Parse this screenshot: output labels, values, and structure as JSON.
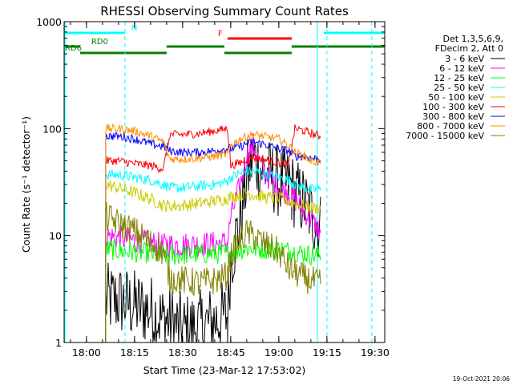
{
  "chart_data": {
    "type": "line",
    "title": "RHESSI Observing Summary Count Rates",
    "xlabel": "Start Time (23-Mar-12 17:53:02)",
    "ylabel": "Count Rate (s⁻¹ detector⁻¹)",
    "y_scale": "log",
    "ylim": [
      1,
      1000
    ],
    "xlim": [
      "17:53:02",
      "19:33:02"
    ],
    "x_ticks": [
      "18:00",
      "18:15",
      "18:30",
      "18:45",
      "19:00",
      "19:15",
      "19:30"
    ],
    "y_ticks": [
      "1",
      "10",
      "100",
      "1000"
    ],
    "legend": {
      "position": "right",
      "header": [
        "Det 1,3,5,6,9,",
        "FDecim 2, Att 0"
      ]
    },
    "timestamp": "19-Oct-2021 20:06",
    "flag_bars": [
      {
        "label": "N",
        "color": "#00ffff",
        "segments": [
          [
            "17:53:02",
            "18:12"
          ],
          [
            "19:14",
            "19:33"
          ]
        ]
      },
      {
        "label": "F",
        "color": "#ff0000",
        "segments": [
          [
            "18:44",
            "19:04"
          ]
        ]
      },
      {
        "label": "RD0",
        "color": "#008000",
        "segments": [
          [
            "17:53:02",
            "17:58"
          ],
          [
            "18:25",
            "18:43"
          ],
          [
            "19:04",
            "19:33"
          ]
        ]
      },
      {
        "label": "RD6",
        "color": "#008000",
        "segments": [
          [
            "17:58",
            "18:25"
          ],
          [
            "18:43",
            "19:04"
          ]
        ]
      }
    ],
    "vlines": [
      {
        "time": "17:53:02",
        "color": "#00ffff",
        "style": "solid"
      },
      {
        "time": "18:12",
        "color": "#00ffff",
        "style": "dashed"
      },
      {
        "time": "19:12",
        "color": "#00ffff",
        "style": "solid"
      },
      {
        "time": "19:15",
        "color": "#00ffff",
        "style": "dashed"
      },
      {
        "time": "19:29",
        "color": "#00ffff",
        "style": "dashed"
      }
    ],
    "data_segments": [
      [
        "18:06",
        "18:25"
      ],
      [
        "18:25",
        "18:44"
      ],
      [
        "18:44",
        "19:04"
      ],
      [
        "19:04",
        "19:13"
      ]
    ],
    "x": [
      "18:06",
      "18:10",
      "18:15",
      "18:20",
      "18:24",
      "18:26",
      "18:30",
      "18:35",
      "18:40",
      "18:44",
      "18:45",
      "18:48",
      "18:50",
      "18:52",
      "18:55",
      "19:00",
      "19:03",
      "19:05",
      "19:08",
      "19:10",
      "19:13"
    ],
    "series": [
      {
        "name": "3 - 6 keV",
        "color": "#000000",
        "values": [
          2.5,
          2.5,
          2.2,
          2.0,
          1.6,
          1.6,
          1.3,
          1.4,
          1.6,
          1.8,
          6,
          14,
          35,
          55,
          40,
          32,
          30,
          25,
          20,
          16,
          12
        ]
      },
      {
        "name": "6 - 12 keV",
        "color": "#ff00ff",
        "values": [
          10,
          9.5,
          9,
          8.6,
          8,
          8.2,
          8.2,
          8.3,
          8.4,
          8.6,
          15,
          30,
          55,
          70,
          40,
          28,
          25,
          22,
          17,
          14,
          11
        ]
      },
      {
        "name": "12 - 25 keV",
        "color": "#00ff00",
        "values": [
          7.5,
          7.2,
          7,
          6.8,
          6.5,
          6.5,
          6.6,
          6.7,
          6.8,
          6.8,
          7,
          7.4,
          7.6,
          7.6,
          7.5,
          7.4,
          7.2,
          7.0,
          6.8,
          6.6,
          6.5
        ]
      },
      {
        "name": "25 - 50 keV",
        "color": "#00ffff",
        "values": [
          37,
          37,
          35,
          33,
          30,
          28,
          28,
          29,
          30,
          32,
          35,
          38,
          40,
          40,
          38,
          35,
          33,
          30,
          28,
          27,
          27
        ]
      },
      {
        "name": "50 - 100 keV",
        "color": "#cccc00",
        "values": [
          30,
          28,
          25,
          22,
          19,
          19,
          19,
          20,
          21,
          22,
          23,
          24,
          25,
          24,
          23,
          22,
          21,
          20,
          19,
          18,
          18
        ]
      },
      {
        "name": "100 - 300 keV",
        "color": "#ff0000",
        "values": [
          50,
          50,
          47,
          45,
          42,
          88,
          88,
          90,
          95,
          100,
          45,
          48,
          52,
          54,
          52,
          48,
          45,
          100,
          95,
          90,
          85
        ]
      },
      {
        "name": "300 - 800 keV",
        "color": "#0000ff",
        "values": [
          85,
          85,
          80,
          72,
          68,
          62,
          60,
          60,
          62,
          65,
          65,
          68,
          72,
          75,
          72,
          65,
          62,
          55,
          55,
          53,
          52
        ]
      },
      {
        "name": "800 - 7000 keV",
        "color": "#ff8c00",
        "values": [
          100,
          100,
          95,
          85,
          75,
          52,
          52,
          53,
          55,
          58,
          70,
          80,
          85,
          88,
          85,
          80,
          70,
          60,
          55,
          50,
          48
        ]
      },
      {
        "name": "7000 - 15000 keV",
        "color": "#808000",
        "values": [
          15,
          13,
          11,
          8.5,
          7,
          4,
          3.8,
          3.6,
          3.8,
          4.2,
          6.5,
          9,
          10.5,
          10,
          8.5,
          7,
          5,
          4.5,
          4,
          3.8,
          3.5
        ]
      }
    ]
  }
}
